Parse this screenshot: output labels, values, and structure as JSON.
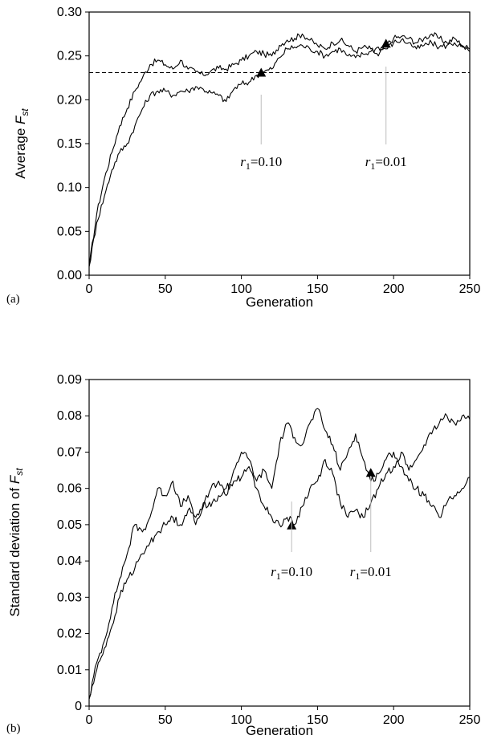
{
  "chart_data": [
    {
      "panel": "(a)",
      "type": "line",
      "xlabel": "Generation",
      "ylabel": {
        "prefix": "Average ",
        "var": "F",
        "sub": "st"
      },
      "xlim": [
        0,
        250
      ],
      "ylim": [
        0,
        0.3
      ],
      "xticks": [
        "0",
        "50",
        "100",
        "150",
        "200",
        "250"
      ],
      "yticks": [
        "0.00",
        "0.05",
        "0.10",
        "0.15",
        "0.20",
        "0.25",
        "0.30"
      ],
      "grid": false,
      "legend": "none",
      "reference_line": {
        "y": 0.231,
        "style": "dashed"
      },
      "series": [
        {
          "x": [
            0,
            5,
            10,
            15,
            20,
            25,
            30,
            35,
            40,
            45,
            50,
            55,
            60,
            65,
            70,
            75,
            80,
            85,
            90,
            95,
            100,
            105,
            110,
            115,
            120,
            125,
            130,
            135,
            140,
            145,
            150,
            155,
            160,
            165,
            170,
            175,
            180,
            185,
            190,
            195,
            200,
            205,
            210,
            215,
            220,
            225,
            230,
            235,
            240,
            245,
            250
          ],
          "values": [
            0.01,
            0.07,
            0.11,
            0.14,
            0.17,
            0.19,
            0.21,
            0.225,
            0.24,
            0.245,
            0.24,
            0.235,
            0.245,
            0.235,
            0.232,
            0.228,
            0.233,
            0.236,
            0.235,
            0.24,
            0.245,
            0.25,
            0.255,
            0.252,
            0.25,
            0.262,
            0.268,
            0.27,
            0.275,
            0.268,
            0.262,
            0.258,
            0.265,
            0.268,
            0.262,
            0.255,
            0.26,
            0.258,
            0.25,
            0.262,
            0.27,
            0.272,
            0.27,
            0.265,
            0.27,
            0.275,
            0.27,
            0.265,
            0.27,
            0.262,
            0.258
          ]
        },
        {
          "x": [
            0,
            5,
            10,
            15,
            20,
            25,
            30,
            35,
            40,
            45,
            50,
            55,
            60,
            65,
            70,
            75,
            80,
            85,
            90,
            95,
            100,
            105,
            110,
            115,
            120,
            125,
            130,
            135,
            140,
            145,
            150,
            155,
            160,
            165,
            170,
            175,
            180,
            185,
            190,
            195,
            200,
            205,
            210,
            215,
            220,
            225,
            230,
            235,
            240,
            245,
            250
          ],
          "values": [
            0.01,
            0.06,
            0.09,
            0.12,
            0.14,
            0.15,
            0.17,
            0.19,
            0.205,
            0.21,
            0.21,
            0.205,
            0.21,
            0.21,
            0.215,
            0.212,
            0.208,
            0.205,
            0.198,
            0.212,
            0.218,
            0.22,
            0.228,
            0.232,
            0.235,
            0.248,
            0.258,
            0.26,
            0.262,
            0.258,
            0.255,
            0.25,
            0.255,
            0.258,
            0.25,
            0.248,
            0.252,
            0.255,
            0.26,
            0.258,
            0.265,
            0.268,
            0.265,
            0.258,
            0.262,
            0.265,
            0.26,
            0.262,
            0.265,
            0.26,
            0.255
          ]
        }
      ],
      "annotations": [
        {
          "r_var": "r",
          "r_sub": "1",
          "text": "=0.10",
          "x": 113,
          "y": 0.231
        },
        {
          "r_var": "r",
          "r_sub": "1",
          "text": "=0.01",
          "x": 195,
          "y": 0.264
        }
      ]
    },
    {
      "panel": "(b)",
      "type": "line",
      "xlabel": "Generation",
      "ylabel": {
        "prefix": "Standard deviation of ",
        "var": "F",
        "sub": "st"
      },
      "xlim": [
        0,
        250
      ],
      "ylim": [
        0,
        0.09
      ],
      "xticks": [
        "0",
        "50",
        "100",
        "150",
        "200",
        "250"
      ],
      "yticks": [
        "0",
        "0.01",
        "0.02",
        "0.03",
        "0.04",
        "0.05",
        "0.06",
        "0.07",
        "0.08",
        "0.09"
      ],
      "grid": false,
      "legend": "none",
      "series": [
        {
          "x": [
            0,
            5,
            10,
            15,
            20,
            25,
            30,
            35,
            40,
            45,
            50,
            55,
            60,
            65,
            70,
            75,
            80,
            85,
            90,
            95,
            100,
            105,
            110,
            115,
            120,
            125,
            130,
            135,
            140,
            145,
            150,
            155,
            160,
            165,
            170,
            175,
            180,
            185,
            190,
            195,
            200,
            205,
            210,
            215,
            220,
            225,
            230,
            235,
            240,
            245,
            250
          ],
          "values": [
            0.002,
            0.012,
            0.018,
            0.027,
            0.035,
            0.042,
            0.05,
            0.048,
            0.052,
            0.06,
            0.058,
            0.062,
            0.055,
            0.058,
            0.05,
            0.055,
            0.06,
            0.062,
            0.058,
            0.065,
            0.07,
            0.068,
            0.062,
            0.065,
            0.06,
            0.072,
            0.078,
            0.074,
            0.072,
            0.078,
            0.082,
            0.076,
            0.072,
            0.065,
            0.07,
            0.075,
            0.068,
            0.062,
            0.064,
            0.068,
            0.07,
            0.066,
            0.062,
            0.06,
            0.058,
            0.055,
            0.052,
            0.056,
            0.058,
            0.06,
            0.063
          ]
        },
        {
          "x": [
            0,
            5,
            10,
            15,
            20,
            25,
            30,
            35,
            40,
            45,
            50,
            55,
            60,
            65,
            70,
            75,
            80,
            85,
            90,
            95,
            100,
            105,
            110,
            115,
            120,
            125,
            130,
            135,
            140,
            145,
            150,
            155,
            160,
            165,
            170,
            175,
            180,
            185,
            190,
            195,
            200,
            205,
            210,
            215,
            220,
            225,
            230,
            235,
            240,
            245,
            250
          ],
          "values": [
            0.002,
            0.01,
            0.016,
            0.022,
            0.03,
            0.035,
            0.038,
            0.042,
            0.045,
            0.048,
            0.05,
            0.052,
            0.05,
            0.054,
            0.052,
            0.056,
            0.055,
            0.058,
            0.06,
            0.062,
            0.063,
            0.066,
            0.06,
            0.055,
            0.052,
            0.05,
            0.052,
            0.05,
            0.055,
            0.06,
            0.062,
            0.068,
            0.064,
            0.056,
            0.052,
            0.054,
            0.052,
            0.056,
            0.06,
            0.064,
            0.066,
            0.07,
            0.065,
            0.068,
            0.072,
            0.075,
            0.078,
            0.08,
            0.078,
            0.08,
            0.079
          ]
        }
      ],
      "annotations": [
        {
          "r_var": "r",
          "r_sub": "1",
          "text": "=0.10",
          "x": 133,
          "y": 0.0498
        },
        {
          "r_var": "r",
          "r_sub": "1",
          "text": "=0.01",
          "x": 185,
          "y": 0.0643
        }
      ]
    }
  ]
}
